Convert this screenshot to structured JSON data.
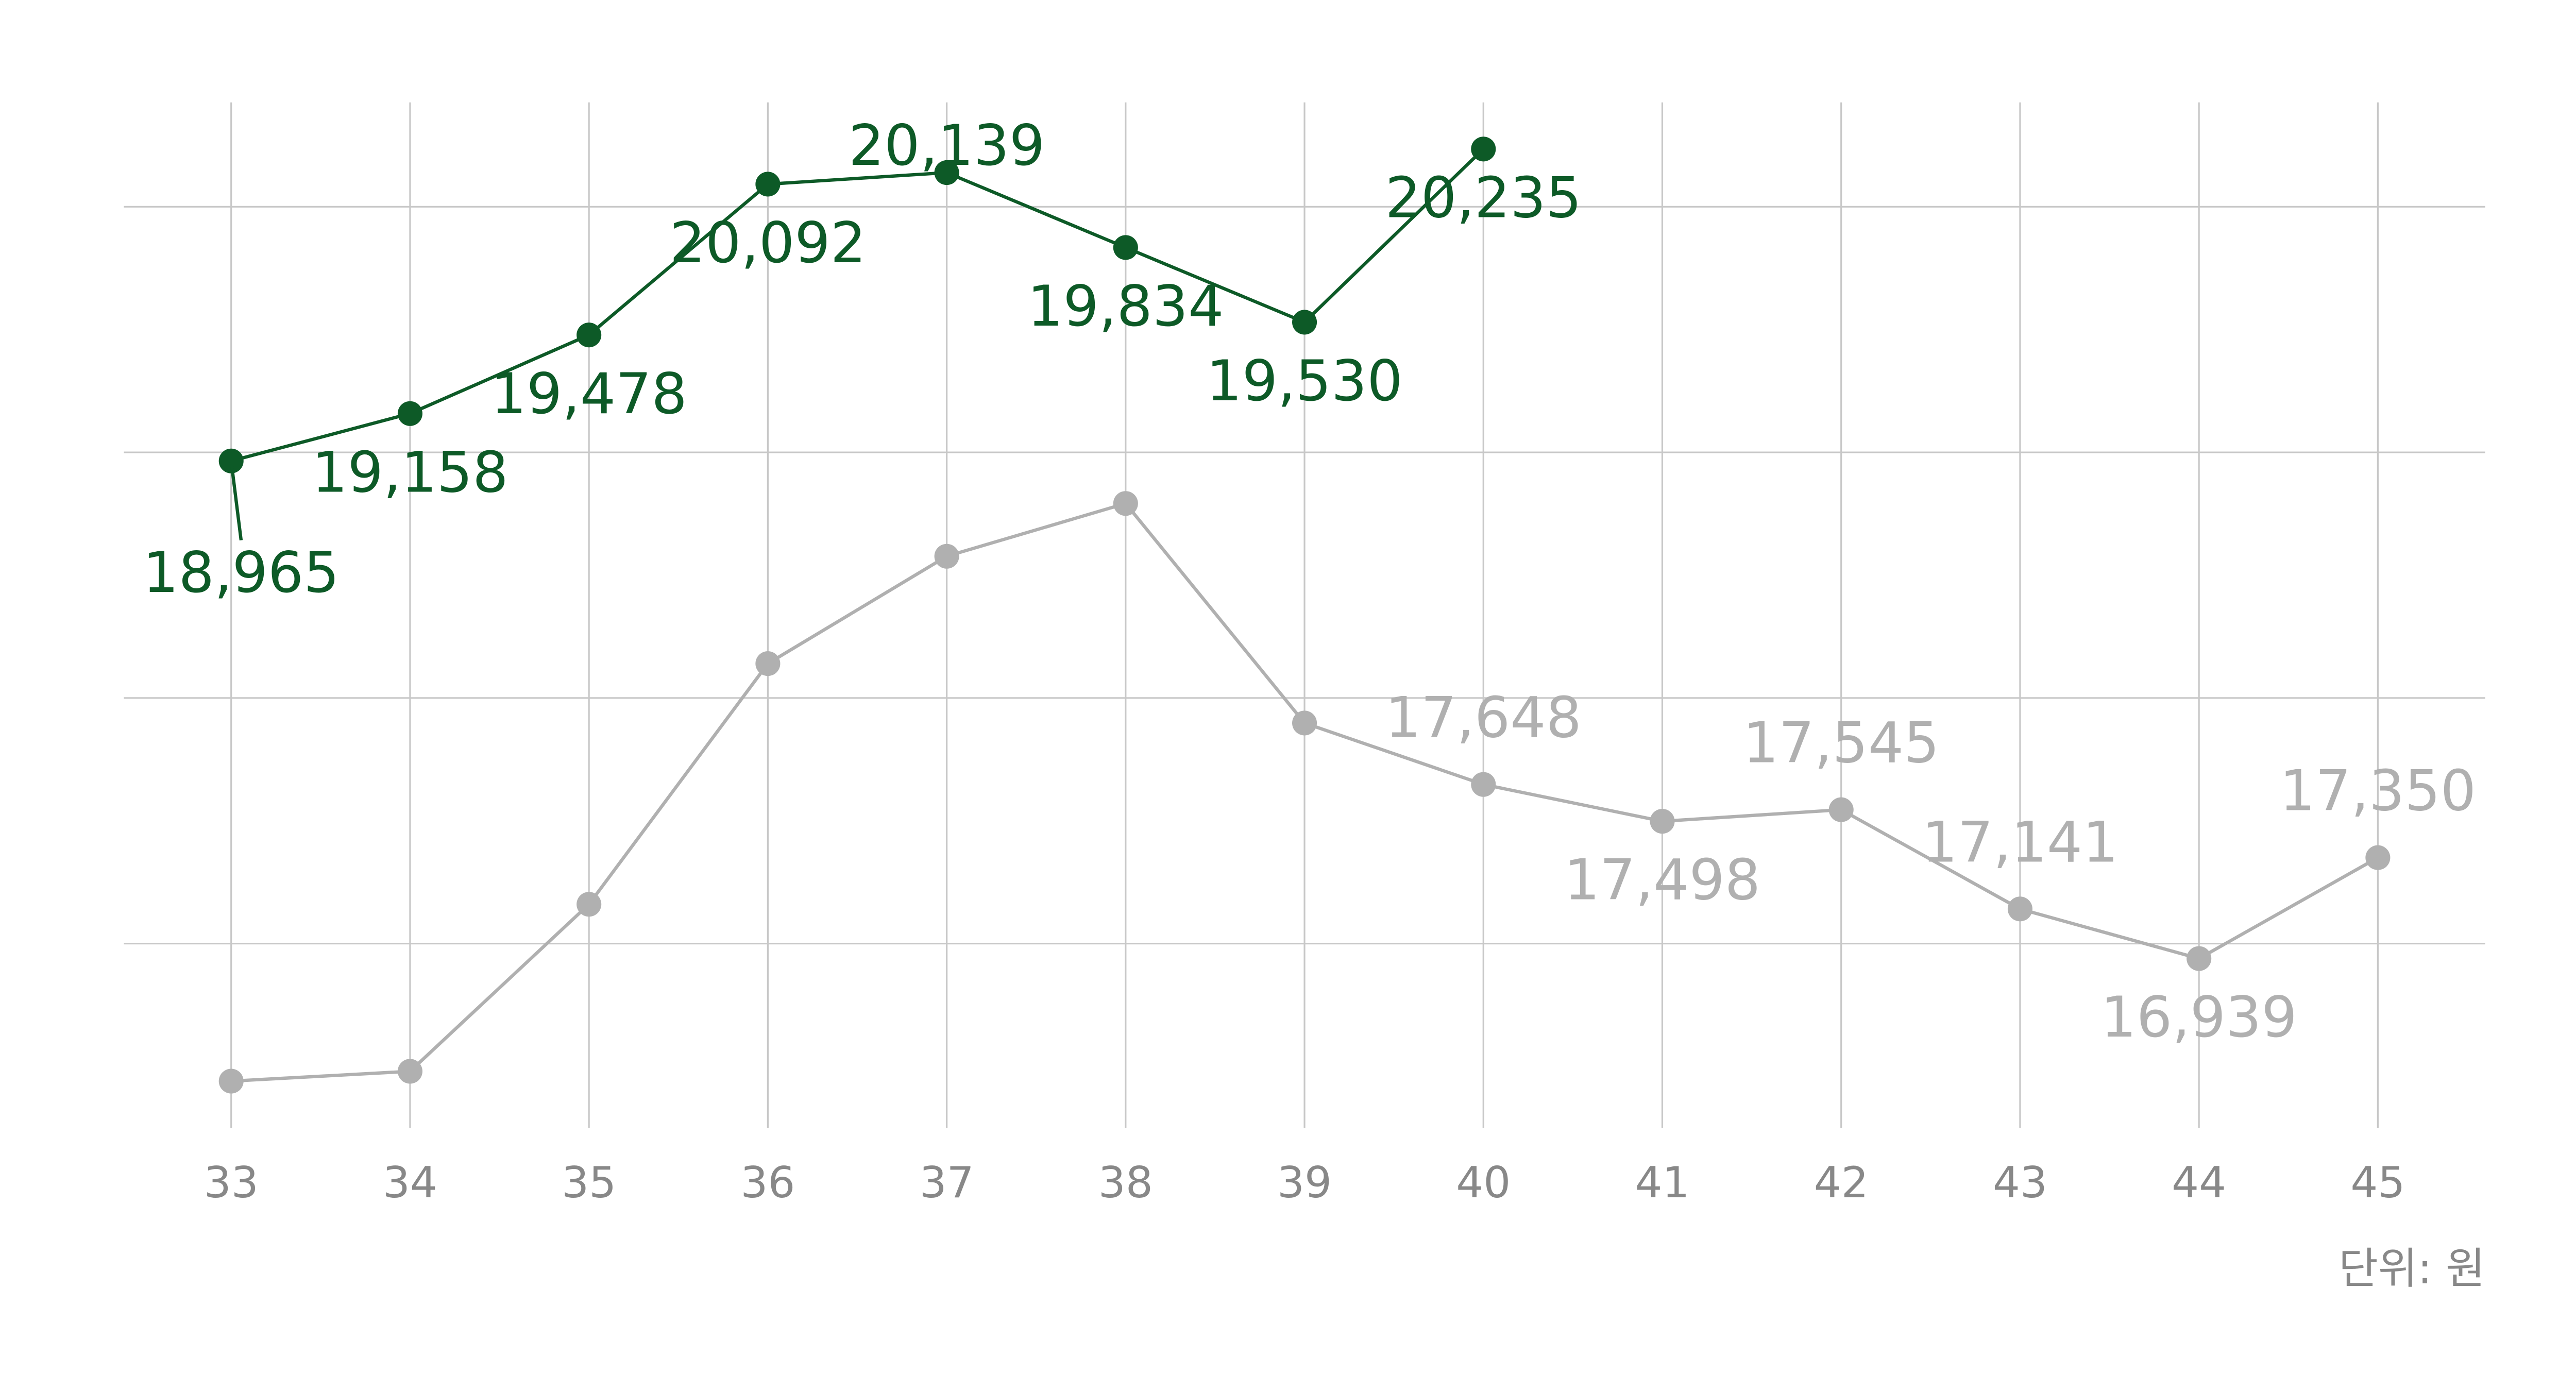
{
  "chart_data": {
    "type": "line",
    "categories": [
      "33",
      "34",
      "35",
      "36",
      "37",
      "38",
      "39",
      "40",
      "41",
      "42",
      "43",
      "44",
      "45"
    ],
    "series": [
      {
        "color": "#b0b0b0",
        "values": [
          16440,
          16480,
          17160,
          18140,
          18577,
          18792,
          17898,
          17648,
          17498,
          17545,
          17141,
          16939,
          17350
        ],
        "value_labels": [
          null,
          null,
          null,
          null,
          null,
          null,
          null,
          "17,648",
          "17,498",
          "17,545",
          "17,141",
          "16,939",
          "17,350"
        ]
      },
      {
        "color": "#0d5a27",
        "values": [
          18965,
          19158,
          19478,
          20092,
          20139,
          19834,
          19530,
          20235,
          null,
          null,
          null,
          null,
          null
        ],
        "value_labels": [
          "18,965",
          "19,158",
          "19,478",
          "20,092",
          "20,139",
          "19,834",
          "19,530",
          "20,235",
          null,
          null,
          null,
          null,
          null
        ]
      }
    ],
    "ylim": [
      16250,
      20425
    ],
    "yticks": [
      17000,
      18000,
      19000,
      20000
    ],
    "grid": true,
    "unit_note": "단위: 원"
  }
}
